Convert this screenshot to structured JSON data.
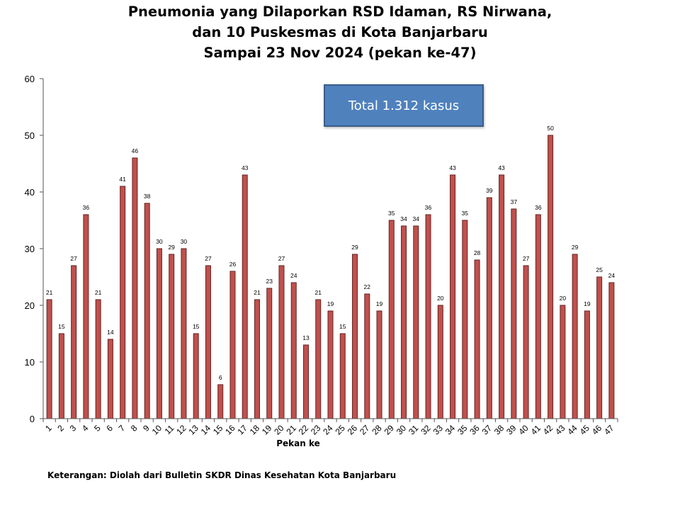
{
  "chart_data": {
    "type": "bar",
    "title_lines": [
      "Pneumonia yang Dilaporkan RSD Idaman, RS Nirwana,",
      "dan 10 Puskesmas di Kota Banjarbaru",
      "Sampai 23 Nov 2024 (pekan ke-47)"
    ],
    "xlabel": "Pekan ke",
    "ylabel": "",
    "ylim": [
      0,
      60
    ],
    "yticks": [
      0,
      10,
      20,
      30,
      40,
      50,
      60
    ],
    "categories": [
      "1",
      "2",
      "3",
      "4",
      "5",
      "6",
      "7",
      "8",
      "9",
      "10",
      "11",
      "12",
      "13",
      "14",
      "15",
      "16",
      "17",
      "18",
      "19",
      "20",
      "21",
      "22",
      "23",
      "24",
      "25",
      "26",
      "27",
      "28",
      "29",
      "30",
      "31",
      "32",
      "33",
      "34",
      "35",
      "36",
      "37",
      "38",
      "39",
      "40",
      "41",
      "42",
      "43",
      "44",
      "45",
      "46",
      "47"
    ],
    "values": [
      21,
      15,
      27,
      36,
      21,
      14,
      41,
      46,
      38,
      30,
      29,
      30,
      15,
      27,
      6,
      26,
      43,
      21,
      23,
      27,
      24,
      13,
      21,
      19,
      15,
      29,
      22,
      19,
      35,
      34,
      34,
      36,
      20,
      43,
      35,
      28,
      39,
      43,
      37,
      27,
      36,
      50,
      20,
      29,
      19,
      25,
      24
    ],
    "bar_color": "#c0504d",
    "bar_edge_color": "#632523",
    "annotation": "Total 1.312 kasus",
    "grid": false,
    "legend": "none"
  },
  "note": "Keterangan: Diolah dari Bulletin SKDR Dinas Kesehatan Kota Banjarbaru",
  "colors": {
    "box_fill": "#4f81bd",
    "box_border": "#385d8a"
  }
}
